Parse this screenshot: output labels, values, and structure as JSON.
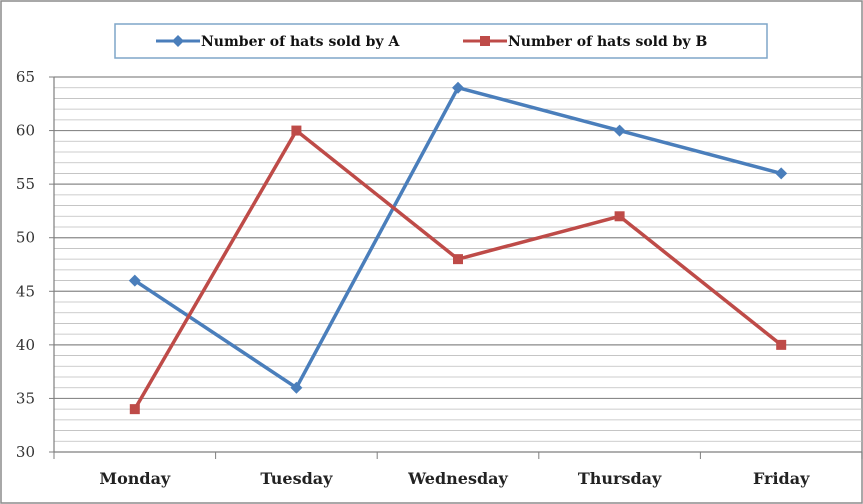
{
  "chart_data": {
    "type": "line",
    "categories": [
      "Monday",
      "Tuesday",
      "Wednesday",
      "Thursday",
      "Friday"
    ],
    "series": [
      {
        "name": "Number of hats sold by A",
        "values": [
          46,
          36,
          64,
          60,
          56
        ],
        "color": "#4a7ebb",
        "marker": "diamond"
      },
      {
        "name": "Number of hats sold by B",
        "values": [
          34,
          60,
          48,
          52,
          40
        ],
        "color": "#be4b48",
        "marker": "square"
      }
    ],
    "title": "",
    "xlabel": "",
    "ylabel": "",
    "ylim": [
      30,
      65
    ],
    "y_ticks": [
      30,
      35,
      40,
      45,
      50,
      55,
      60,
      65
    ],
    "minor_grid_step": 1,
    "grid": true,
    "legend_position": "top"
  }
}
